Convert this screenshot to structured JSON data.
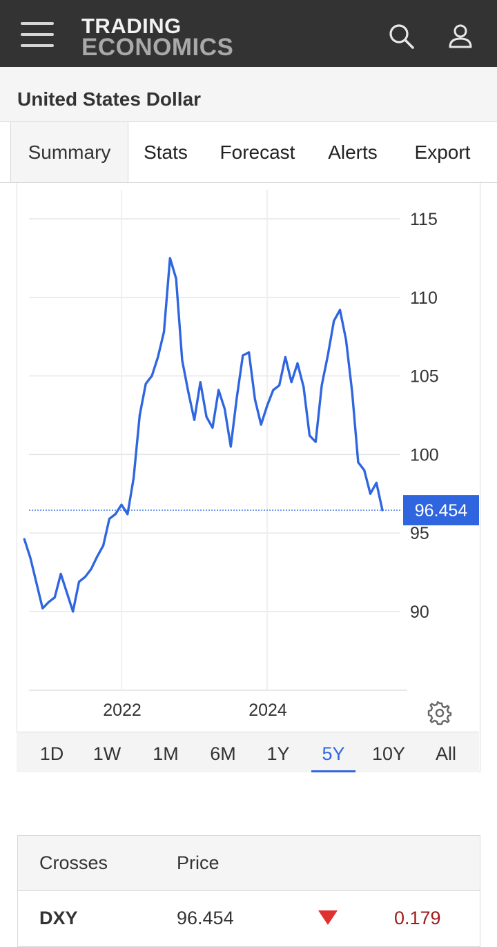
{
  "header": {
    "logo_line1": "TRADING",
    "logo_line2": "ECONOMICS",
    "menu_icon": "hamburger-menu-icon",
    "search_icon": "search-icon",
    "user_icon": "user-icon"
  },
  "page": {
    "title": "United States Dollar"
  },
  "tabs": [
    {
      "label": "Summary",
      "active": true
    },
    {
      "label": "Stats"
    },
    {
      "label": "Forecast"
    },
    {
      "label": "Alerts"
    },
    {
      "label": "Export"
    }
  ],
  "chart_data": {
    "type": "line",
    "x_tick_labels": [
      "2022",
      "2024"
    ],
    "y_tick_labels": [
      "115",
      "110",
      "105",
      "100",
      "95",
      "90"
    ],
    "ylim": [
      85,
      117
    ],
    "current_value_label": "96.454",
    "current_value": 96.454,
    "line_color": "#2f66e0",
    "grid": true,
    "series": [
      {
        "x": [
          "2020-09",
          "2020-10",
          "2020-11",
          "2020-12",
          "2021-01",
          "2021-02",
          "2021-03",
          "2021-04",
          "2021-05",
          "2021-06",
          "2021-07",
          "2021-08",
          "2021-09",
          "2021-10",
          "2021-11",
          "2021-12",
          "2022-01",
          "2022-02",
          "2022-03",
          "2022-04",
          "2022-05",
          "2022-06",
          "2022-07",
          "2022-08",
          "2022-09",
          "2022-10",
          "2022-11",
          "2022-12",
          "2023-01",
          "2023-02",
          "2023-03",
          "2023-04",
          "2023-05",
          "2023-06",
          "2023-07",
          "2023-08",
          "2023-09",
          "2023-10",
          "2023-11",
          "2023-12",
          "2024-01",
          "2024-02",
          "2024-03",
          "2024-04",
          "2024-05",
          "2024-06",
          "2024-07",
          "2024-08",
          "2024-09",
          "2024-10",
          "2024-11",
          "2024-12",
          "2025-01",
          "2025-02",
          "2025-03",
          "2025-04",
          "2025-05",
          "2025-06",
          "2025-07",
          "2025-08"
        ],
        "values": [
          94.6,
          93.4,
          91.8,
          90.2,
          90.6,
          90.9,
          92.4,
          91.2,
          90.0,
          91.9,
          92.2,
          92.7,
          93.5,
          94.2,
          95.9,
          96.2,
          96.8,
          96.2,
          98.5,
          102.5,
          104.5,
          105.0,
          106.2,
          107.8,
          112.5,
          111.2,
          106.0,
          104.0,
          102.2,
          104.6,
          102.4,
          101.7,
          104.1,
          102.9,
          100.5,
          103.6,
          106.3,
          106.5,
          103.5,
          101.9,
          103.1,
          104.1,
          104.4,
          106.2,
          104.6,
          105.8,
          104.3,
          101.2,
          100.8,
          104.4,
          106.3,
          108.5,
          109.2,
          107.3,
          104.0,
          99.5,
          99.0,
          97.5,
          98.2,
          96.454
        ]
      }
    ]
  },
  "timeframes": [
    {
      "label": "1D"
    },
    {
      "label": "1W"
    },
    {
      "label": "1M"
    },
    {
      "label": "6M"
    },
    {
      "label": "1Y"
    },
    {
      "label": "5Y",
      "active": true
    },
    {
      "label": "10Y"
    },
    {
      "label": "All"
    }
  ],
  "chart_settings_icon": "gear-icon",
  "crosses_table": {
    "headers": [
      "Crosses",
      "Price"
    ],
    "rows": [
      {
        "name": "DXY",
        "price": "96.454",
        "direction": "down",
        "change": "0.179"
      }
    ],
    "down_color": "#e03030",
    "change_color": "#a01c1c"
  }
}
